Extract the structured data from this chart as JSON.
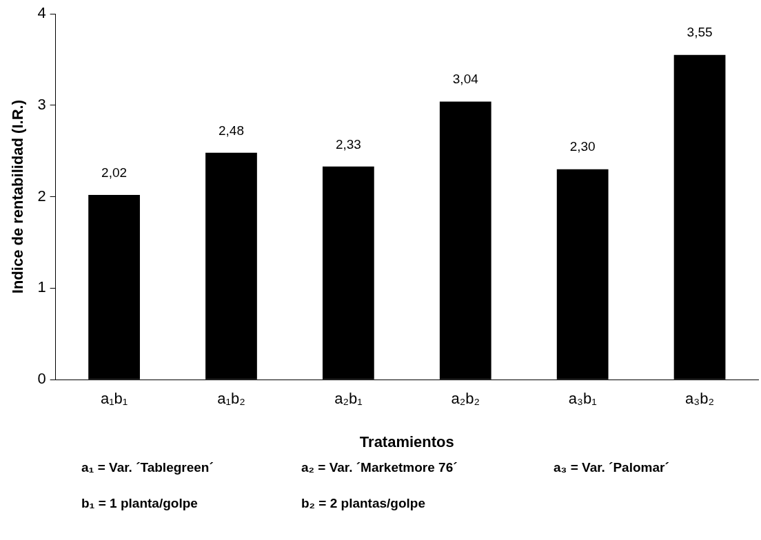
{
  "chart_data": {
    "type": "bar",
    "xlabel": "Tratamientos",
    "ylabel": "Indice de rentabilidad (I.R.)",
    "categories": [
      "a₁b₁",
      "a₁b₂",
      "a₂b₁",
      "a₂b₂",
      "a₃b₁",
      "a₃b₂"
    ],
    "values": [
      2.02,
      2.48,
      2.33,
      3.04,
      2.3,
      3.55
    ],
    "value_labels": [
      "2,02",
      "2,48",
      "2,33",
      "3,04",
      "2,30",
      "3,55"
    ],
    "color": "#000000",
    "ylim": [
      0,
      4
    ],
    "yticks": [
      0,
      1,
      2,
      3,
      4
    ],
    "grid": false,
    "legend": false,
    "annotations": [
      "a₁ = Var. ´Tablegreen´",
      "a₂ = Var. ´Marketmore 76´",
      "a₃ = Var. ´Palomar´",
      "b₁ = 1 planta/golpe",
      "b₂ = 2 plantas/golpe"
    ]
  }
}
